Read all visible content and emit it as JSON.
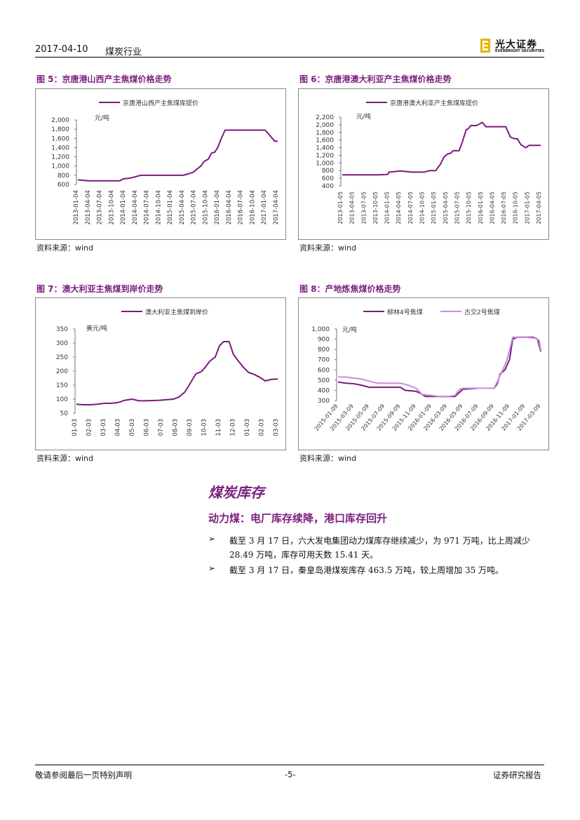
{
  "header": {
    "date": "2017-04-10",
    "industry": "煤炭行业",
    "logo_text": "光大证券",
    "logo_sub": "EVERBRIGHT SECURITIES"
  },
  "figures": [
    {
      "title": "图 5：京唐港山西产主焦煤价格走势",
      "source": "资料来源：wind"
    },
    {
      "title": "图 6：京唐港澳大利亚产主焦煤价格走势",
      "source": "资料来源：wind"
    },
    {
      "title": "图 7：澳大利亚主焦煤到岸价走势",
      "source": "资料来源：wind"
    },
    {
      "title": "图 8：产地炼焦煤价格走势",
      "source": "资料来源：wind"
    }
  ],
  "section": {
    "title": "煤炭库存",
    "subtitle": "动力煤：电厂库存续降，港口库存回升",
    "bullets": [
      "截至 3 月 17 日，六大发电集团动力煤库存继续减少，为 971 万吨，比上周减少 28.49 万吨，库存可用天数 15.41 天。",
      "截至 3 月 17 日，秦皇岛港煤炭库存 463.5 万吨，较上周增加 35 万吨。"
    ]
  },
  "footer": {
    "left": "敬请参阅最后一页特别声明",
    "center": "-5-",
    "right": "证券研究报告"
  },
  "colors": {
    "accent": "#7a1f7d",
    "series_dark": "#7b1a7e",
    "series_light": "#c48ee0"
  },
  "chart_data": [
    {
      "type": "line",
      "legend": [
        "京唐港山西产主焦煤库提价"
      ],
      "unit": "元/吨",
      "ylim": [
        600,
        2000
      ],
      "yticks": [
        "2,000",
        "1,800",
        "1,600",
        "1,400",
        "1,200",
        "1,000",
        "800",
        "600"
      ],
      "xticks": [
        "2013-01-04",
        "2013-04-04",
        "2013-07-04",
        "2013-10-04",
        "2014-01-04",
        "2014-04-04",
        "2014-07-04",
        "2014-10-04",
        "2015-01-04",
        "2015-04-04",
        "2015-07-04",
        "2015-10-04",
        "2016-01-04",
        "2016-04-04",
        "2016-07-04",
        "2016-10-04",
        "2017-01-04",
        "2017-04-04"
      ],
      "series": [
        {
          "points": [
            [
              0,
              700
            ],
            [
              1,
              680
            ],
            [
              2,
              680
            ],
            [
              3,
              680
            ],
            [
              4,
              680
            ],
            [
              4.3,
              720
            ],
            [
              5,
              740
            ],
            [
              6,
              800
            ],
            [
              7,
              800
            ],
            [
              8,
              800
            ],
            [
              9,
              800
            ],
            [
              10,
              800
            ],
            [
              10.5,
              830
            ],
            [
              11,
              870
            ],
            [
              11.3,
              930
            ],
            [
              11.7,
              1000
            ],
            [
              12,
              1100
            ],
            [
              12.4,
              1150
            ],
            [
              12.7,
              1280
            ],
            [
              13,
              1300
            ],
            [
              13.3,
              1400
            ],
            [
              13.6,
              1580
            ],
            [
              14,
              1780
            ],
            [
              15,
              1780
            ],
            [
              16,
              1780
            ],
            [
              17,
              1780
            ],
            [
              17.8,
              1780
            ],
            [
              18.3,
              1650
            ],
            [
              18.7,
              1540
            ],
            [
              19,
              1540
            ]
          ]
        }
      ],
      "xmax": 19
    },
    {
      "type": "line",
      "legend": [
        "京唐港澳大利亚产主焦煤库提价"
      ],
      "unit": "元/吨",
      "ylim": [
        400,
        2200
      ],
      "yticks": [
        "2,200",
        "2,000",
        "1,800",
        "1,600",
        "1,400",
        "1,200",
        "1,000",
        "800",
        "600",
        "400"
      ],
      "xticks": [
        "2013-01-05",
        "2013-04-05",
        "2013-07-05",
        "2013-10-05",
        "2014-01-05",
        "2014-04-05",
        "2014-07-05",
        "2014-10-05",
        "2015-01-05",
        "2015-04-05",
        "2015-07-05",
        "2015-10-05",
        "2016-01-05",
        "2016-04-05",
        "2016-07-05",
        "2016-10-05",
        "2017-01-05",
        "2017-04-05"
      ],
      "series": [
        {
          "points": [
            [
              0,
              690
            ],
            [
              1,
              690
            ],
            [
              2,
              690
            ],
            [
              3,
              690
            ],
            [
              3.9,
              700
            ],
            [
              4,
              760
            ],
            [
              5,
              790
            ],
            [
              6,
              760
            ],
            [
              7,
              760
            ],
            [
              7.5,
              800
            ],
            [
              8,
              800
            ],
            [
              8.4,
              960
            ],
            [
              8.7,
              1150
            ],
            [
              9,
              1230
            ],
            [
              9.3,
              1260
            ],
            [
              9.5,
              1320
            ],
            [
              10,
              1320
            ],
            [
              10.3,
              1560
            ],
            [
              10.6,
              1860
            ],
            [
              10.8,
              1900
            ],
            [
              11,
              1980
            ],
            [
              11.5,
              1980
            ],
            [
              12,
              2060
            ],
            [
              12.3,
              1950
            ],
            [
              13,
              1950
            ],
            [
              14,
              1950
            ],
            [
              14.4,
              1680
            ],
            [
              14.7,
              1640
            ],
            [
              15,
              1630
            ],
            [
              15.3,
              1480
            ],
            [
              15.7,
              1400
            ],
            [
              16,
              1460
            ],
            [
              17,
              1460
            ]
          ]
        }
      ],
      "xmax": 17
    },
    {
      "type": "line",
      "legend": [
        "澳大利亚主焦煤到岸价"
      ],
      "unit": "美元/吨",
      "ylim": [
        50,
        350
      ],
      "yticks": [
        "350",
        "300",
        "250",
        "200",
        "150",
        "100",
        "50"
      ],
      "xticks": [
        "01-03",
        "02-03",
        "03-03",
        "04-03",
        "05-03",
        "06-03",
        "07-03",
        "08-03",
        "09-03",
        "10-03",
        "11-03",
        "12-03",
        "01-03",
        "02-03",
        "03-03"
      ],
      "series": [
        {
          "points": [
            [
              0,
              82
            ],
            [
              0.5,
              80
            ],
            [
              1,
              80
            ],
            [
              1.5,
              82
            ],
            [
              2,
              85
            ],
            [
              2.5,
              85
            ],
            [
              3,
              88
            ],
            [
              3.5,
              96
            ],
            [
              4,
              100
            ],
            [
              4.5,
              94
            ],
            [
              5,
              94
            ],
            [
              5.5,
              95
            ],
            [
              6,
              96
            ],
            [
              6.5,
              98
            ],
            [
              7,
              100
            ],
            [
              7.4,
              108
            ],
            [
              7.8,
              125
            ],
            [
              8,
              140
            ],
            [
              8.3,
              165
            ],
            [
              8.6,
              190
            ],
            [
              9,
              198
            ],
            [
              9.3,
              215
            ],
            [
              9.6,
              235
            ],
            [
              10,
              250
            ],
            [
              10.3,
              290
            ],
            [
              10.6,
              305
            ],
            [
              11,
              305
            ],
            [
              11.3,
              260
            ],
            [
              11.6,
              240
            ],
            [
              12,
              215
            ],
            [
              12.4,
              195
            ],
            [
              12.8,
              188
            ],
            [
              13.2,
              178
            ],
            [
              13.6,
              165
            ],
            [
              14,
              170
            ],
            [
              14.5,
              172
            ]
          ]
        }
      ],
      "xmax": 14.5
    },
    {
      "type": "line",
      "legend": [
        "柳林4号焦煤",
        "古交2号焦煤"
      ],
      "unit": "元/吨",
      "ylim": [
        300,
        1000
      ],
      "yticks": [
        "1,000",
        "900",
        "800",
        "700",
        "600",
        "500",
        "400",
        "300"
      ],
      "xticks": [
        "2015-01-09",
        "2015-03-09",
        "2015-05-09",
        "2015-07-09",
        "2015-09-09",
        "2015-11-09",
        "2016-01-09",
        "2016-03-09",
        "2016-05-09",
        "2016-07-09",
        "2016-09-09",
        "2016-11-09",
        "2017-01-09",
        "2017-03-09"
      ],
      "series": [
        {
          "name": "柳林4号焦煤",
          "points": [
            [
              0,
              480
            ],
            [
              0.5,
              470
            ],
            [
              1,
              465
            ],
            [
              1.5,
              450
            ],
            [
              2,
              430
            ],
            [
              3,
              430
            ],
            [
              4,
              430
            ],
            [
              4.3,
              400
            ],
            [
              5,
              390
            ],
            [
              5.3,
              370
            ],
            [
              5.6,
              340
            ],
            [
              6,
              340
            ],
            [
              6.5,
              340
            ],
            [
              7,
              340
            ],
            [
              7.5,
              340
            ],
            [
              8,
              410
            ],
            [
              9,
              420
            ],
            [
              10,
              420
            ],
            [
              10.2,
              460
            ],
            [
              10.4,
              560
            ],
            [
              10.7,
              600
            ],
            [
              11,
              700
            ],
            [
              11.2,
              900
            ],
            [
              11.5,
              920
            ],
            [
              12,
              920
            ],
            [
              12.5,
              920
            ],
            [
              12.8,
              900
            ],
            [
              13,
              780
            ]
          ]
        },
        {
          "name": "古交2号焦煤",
          "points": [
            [
              0,
              530
            ],
            [
              0.5,
              530
            ],
            [
              1,
              520
            ],
            [
              1.5,
              510
            ],
            [
              2,
              490
            ],
            [
              2.5,
              470
            ],
            [
              3,
              470
            ],
            [
              4,
              470
            ],
            [
              4.5,
              450
            ],
            [
              5,
              420
            ],
            [
              5.4,
              360
            ],
            [
              6,
              350
            ],
            [
              6.5,
              340
            ],
            [
              7,
              340
            ],
            [
              7.5,
              350
            ],
            [
              7.8,
              410
            ],
            [
              8,
              420
            ],
            [
              9,
              420
            ],
            [
              10,
              420
            ],
            [
              10.2,
              480
            ],
            [
              10.5,
              580
            ],
            [
              10.8,
              680
            ],
            [
              11,
              790
            ],
            [
              11.2,
              920
            ],
            [
              11.6,
              920
            ],
            [
              12,
              920
            ],
            [
              12.6,
              910
            ],
            [
              12.9,
              890
            ],
            [
              13,
              790
            ]
          ]
        }
      ],
      "xmax": 13
    }
  ]
}
